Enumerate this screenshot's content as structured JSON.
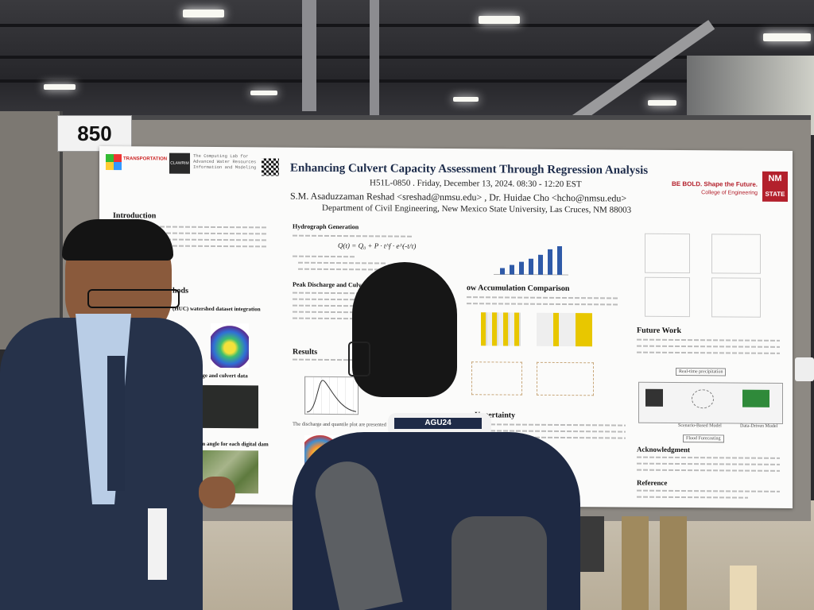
{
  "booth": {
    "number": "850"
  },
  "poster": {
    "title": "Enhancing Culvert Capacity Assessment Through Regression Analysis",
    "session_line": "H51L-0850 . Friday, December 13, 2024. 08:30 - 12:20 EST",
    "authors_line": "S.M. Asaduzzaman Reshad <sreshad@nmsu.edu> , Dr. Huidae Cho <hcho@nmsu.edu>",
    "affiliation": "Department of Civil Engineering, New Mexico State University, Las Cruces, NM 88003",
    "slogan": "BE BOLD. Shape the Future.",
    "college": "College of Engineering",
    "nm_logo_top": "NM",
    "nm_logo_bottom": "STATE",
    "lab_text": "The Computing Lab for Advanced Water Resources Information and Modeling",
    "dept_logo_text": "TRANSPORTATION",
    "clawrim": "CLAWRIM",
    "sections": {
      "introduction": "Introduction",
      "methods": "hods",
      "huc": "(HUC) watershed dataset integration",
      "bridge": "ation of bridge and culvert data",
      "flow_dir": "flow direction angle for each digital dam",
      "hydrograph": "Hydrograph Generation",
      "peak": "Peak Discharge and Culvert C",
      "results": "Results",
      "flow_accum": "ow Accumulation Comparison",
      "uncertainty": "Uncertainty",
      "future": "Future Work",
      "ack": "Acknowledgment",
      "reference": "Reference"
    },
    "equation": "Q(t) = Q₀ + P · t^f · e^(-t/τ)",
    "caption_results": "The discharge and quantile plot are presented for a",
    "fig_real_time": "Real-time precipitation",
    "fig_scenario": "Scenario-Based Model",
    "fig_data_driven": "Data-Driven Model",
    "fig_flood": "Flood Forecasting"
  },
  "badge": {
    "lanyard_text": "AGU24"
  },
  "colors": {
    "poster_title": "#1c2b4a",
    "nmsu_red": "#b3202c",
    "accent_blue": "#2f5aa8",
    "map_yellow": "#e8c700"
  }
}
